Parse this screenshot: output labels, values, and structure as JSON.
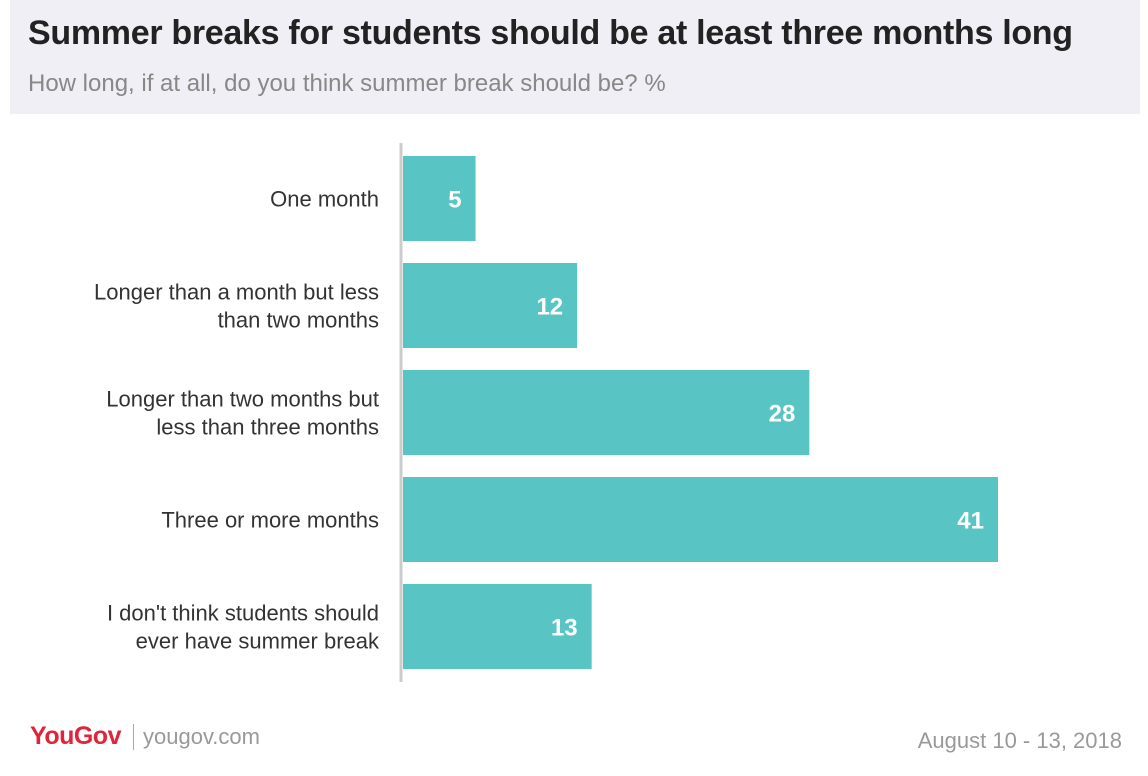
{
  "header": {
    "title": "Summer breaks for students should be at least three months long",
    "subtitle": "How long, if at all, do you think summer break should be? %"
  },
  "footer": {
    "logo": "YouGov",
    "site": "yougov.com",
    "date": "August 10 - 13, 2018"
  },
  "colors": {
    "bar": "#58c4c4",
    "axis": "#cccccc",
    "label_text": "#333333",
    "value_text": "#ffffff",
    "brand": "#e0243a"
  },
  "chart_data": {
    "type": "bar",
    "orientation": "horizontal",
    "categories": [
      [
        "One month"
      ],
      [
        "Longer than a month but less",
        "than two months"
      ],
      [
        "Longer than two months but",
        "less than three months"
      ],
      [
        "Three or more months"
      ],
      [
        "I don't think students should",
        "ever have summer break"
      ]
    ],
    "values": [
      5,
      12,
      28,
      41,
      13
    ],
    "value_labels": [
      "5",
      "12",
      "28",
      "41",
      "13"
    ],
    "xlim": [
      0,
      41
    ],
    "grid": false,
    "legend": "none"
  }
}
